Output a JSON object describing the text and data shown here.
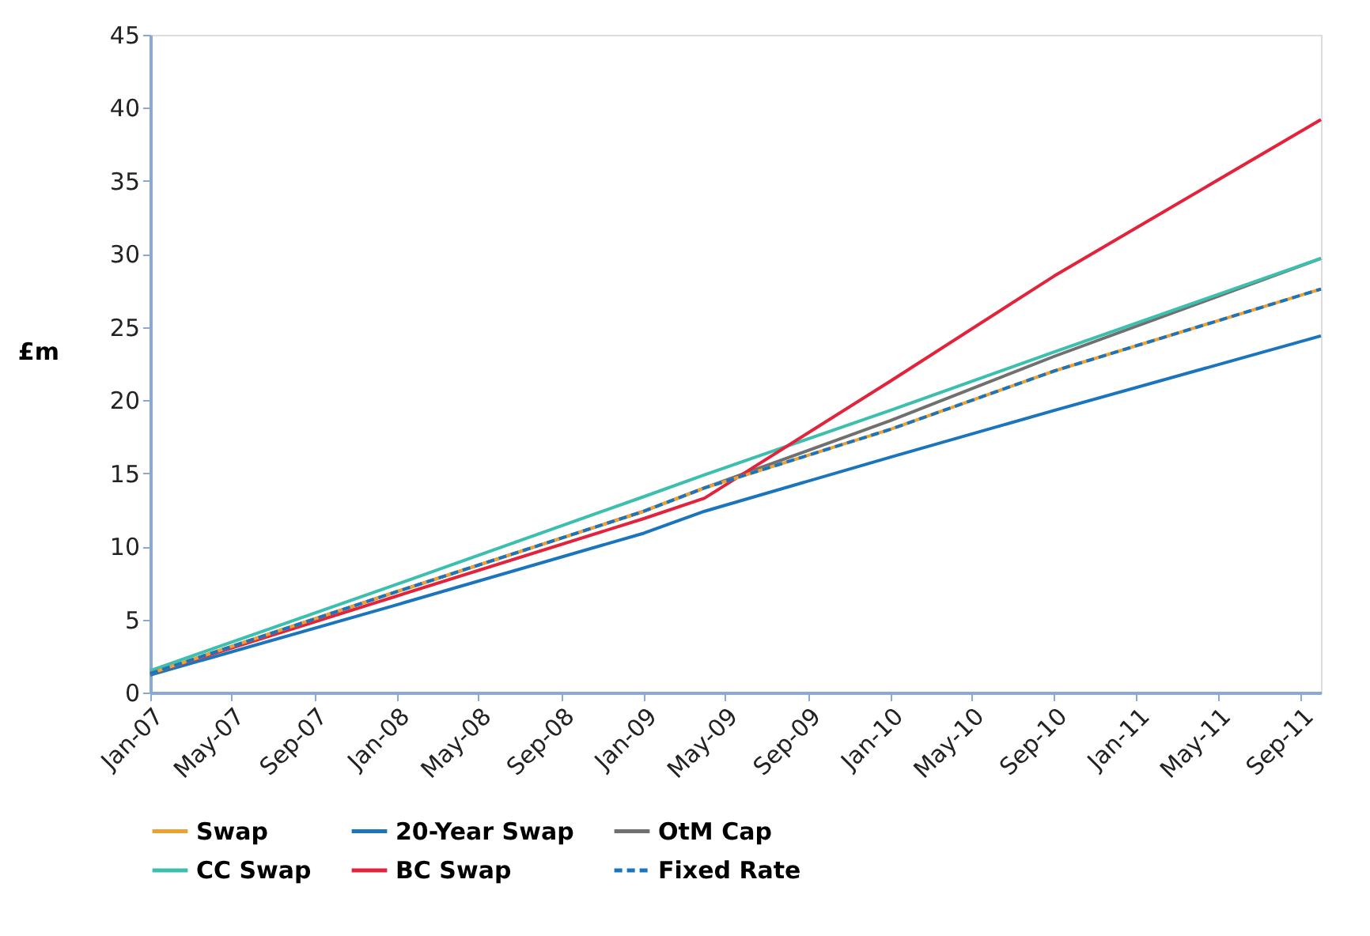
{
  "chart_data": {
    "type": "line",
    "ylabel": "£m",
    "x": [
      "2007-01",
      "2008-01",
      "2009-01",
      "2009-04",
      "2010-01",
      "2010-09",
      "2011-10"
    ],
    "series": [
      {
        "name": "Swap",
        "color": "#f0a030",
        "line_style": "solid",
        "values": [
          1.3,
          6.9,
          12.4,
          14.0,
          18.0,
          22.0,
          27.6
        ]
      },
      {
        "name": "20-Year Swap",
        "color": "#1a75bc",
        "line_style": "solid",
        "values": [
          1.2,
          6.0,
          10.9,
          12.4,
          16.1,
          19.3,
          24.4
        ]
      },
      {
        "name": "OtM Cap",
        "color": "#707070",
        "line_style": "solid",
        "values": [
          1.3,
          6.9,
          12.4,
          14.0,
          18.6,
          23.0,
          29.7
        ]
      },
      {
        "name": "CC Swap",
        "color": "#3cbfae",
        "line_style": "solid",
        "values": [
          1.5,
          7.4,
          13.4,
          14.9,
          19.3,
          23.3,
          29.7
        ]
      },
      {
        "name": "BC Swap",
        "color": "#e2233b",
        "line_style": "solid",
        "values": [
          1.3,
          6.6,
          11.9,
          13.3,
          21.3,
          28.5,
          39.2
        ]
      },
      {
        "name": "Fixed Rate",
        "color": "#1a75bc",
        "line_style": "dashed",
        "values": [
          1.3,
          6.9,
          12.4,
          14.0,
          18.0,
          22.0,
          27.6
        ]
      }
    ],
    "xlim": [
      "2007-01",
      "2011-10"
    ],
    "xticks": [
      {
        "value": "2007-01",
        "label": "Jan-07"
      },
      {
        "value": "2007-05",
        "label": "May-07"
      },
      {
        "value": "2007-09",
        "label": "Sep-07"
      },
      {
        "value": "2008-01",
        "label": "Jan-08"
      },
      {
        "value": "2008-05",
        "label": "May-08"
      },
      {
        "value": "2008-09",
        "label": "Sep-08"
      },
      {
        "value": "2009-01",
        "label": "Jan-09"
      },
      {
        "value": "2009-05",
        "label": "May-09"
      },
      {
        "value": "2009-09",
        "label": "Sep-09"
      },
      {
        "value": "2010-01",
        "label": "Jan-10"
      },
      {
        "value": "2010-05",
        "label": "May-10"
      },
      {
        "value": "2010-09",
        "label": "Sep-10"
      },
      {
        "value": "2011-01",
        "label": "Jan-11"
      },
      {
        "value": "2011-05",
        "label": "May-11"
      },
      {
        "value": "2011-09",
        "label": "Sep-11"
      }
    ],
    "ylim": [
      0,
      45
    ],
    "yticks": [
      0,
      5,
      10,
      15,
      20,
      25,
      30,
      35,
      40,
      45
    ],
    "grid": false,
    "legend": "bottom",
    "marker": "none"
  }
}
